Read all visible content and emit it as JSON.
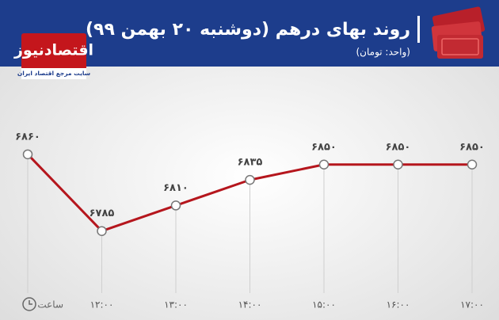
{
  "header": {
    "logo": "اقتصادنیوز",
    "logo_tagline": "سایت مرجع اقتصاد ایران"
  },
  "chart_data": {
    "type": "line",
    "title": "روند بهای درهم (دوشنبه ۲۰ بهمن ۹۹)",
    "subtitle": "(واحد: تومان)",
    "x_label": "ساعت",
    "categories": [
      null,
      "۱۲:۰۰",
      "۱۳:۰۰",
      "۱۴:۰۰",
      "۱۵:۰۰",
      "۱۶:۰۰",
      "۱۷:۰۰"
    ],
    "values": [
      6860,
      6785,
      6810,
      6835,
      6850,
      6850,
      6850
    ],
    "value_labels": [
      "۶۸۶۰",
      "۶۷۸۵",
      "۶۸۱۰",
      "۶۸۳۵",
      "۶۸۵۰",
      "۶۸۵۰",
      "۶۸۵۰"
    ],
    "color": "#b5161d",
    "ylim": [
      6760,
      6880
    ],
    "grid": true
  }
}
